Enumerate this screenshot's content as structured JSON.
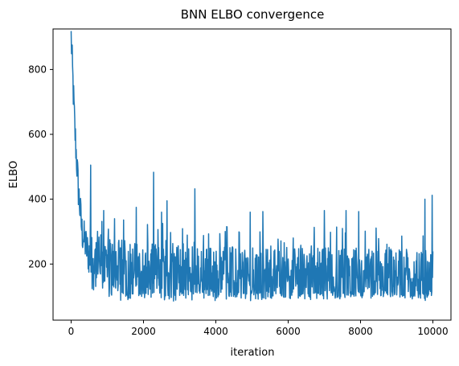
{
  "chart_data": {
    "type": "line",
    "title": "BNN ELBO convergence",
    "xlabel": "iteration",
    "ylabel": "ELBO",
    "xlim": [
      -500,
      10500
    ],
    "ylim": [
      27,
      925
    ],
    "xticks": [
      0,
      2000,
      4000,
      6000,
      8000,
      10000
    ],
    "yticks": [
      200,
      400,
      600,
      800
    ],
    "grid": false,
    "legend": "none",
    "color": "#1f77b4",
    "series": [
      {
        "description_values": "approx trend: starts near 900 at iteration 0, decays exponentially to ~200 by iteration 500, then stays noisy between ~80 and ~300 through iteration 10000",
        "x_start": 0,
        "x_end": 10000,
        "key_points": [
          {
            "x": 0,
            "y": 900
          },
          {
            "x": 50,
            "y": 760
          },
          {
            "x": 100,
            "y": 620
          },
          {
            "x": 200,
            "y": 430
          },
          {
            "x": 300,
            "y": 300
          },
          {
            "x": 500,
            "y": 220
          },
          {
            "x": 1000,
            "y": 190
          },
          {
            "x": 2000,
            "y": 170
          },
          {
            "x": 4000,
            "y": 160
          },
          {
            "x": 6000,
            "y": 155
          },
          {
            "x": 8000,
            "y": 155
          },
          {
            "x": 10000,
            "y": 150
          }
        ],
        "spikes": [
          {
            "x": 540,
            "y": 505
          },
          {
            "x": 2280,
            "y": 483
          },
          {
            "x": 3420,
            "y": 432
          },
          {
            "x": 9980,
            "y": 412
          },
          {
            "x": 9780,
            "y": 400
          },
          {
            "x": 2650,
            "y": 395
          },
          {
            "x": 1800,
            "y": 375
          },
          {
            "x": 900,
            "y": 365
          },
          {
            "x": 7000,
            "y": 365
          },
          {
            "x": 7600,
            "y": 365
          },
          {
            "x": 5300,
            "y": 362
          },
          {
            "x": 4950,
            "y": 360
          },
          {
            "x": 7950,
            "y": 362
          },
          {
            "x": 2500,
            "y": 360
          },
          {
            "x": 1200,
            "y": 340
          }
        ]
      }
    ]
  }
}
